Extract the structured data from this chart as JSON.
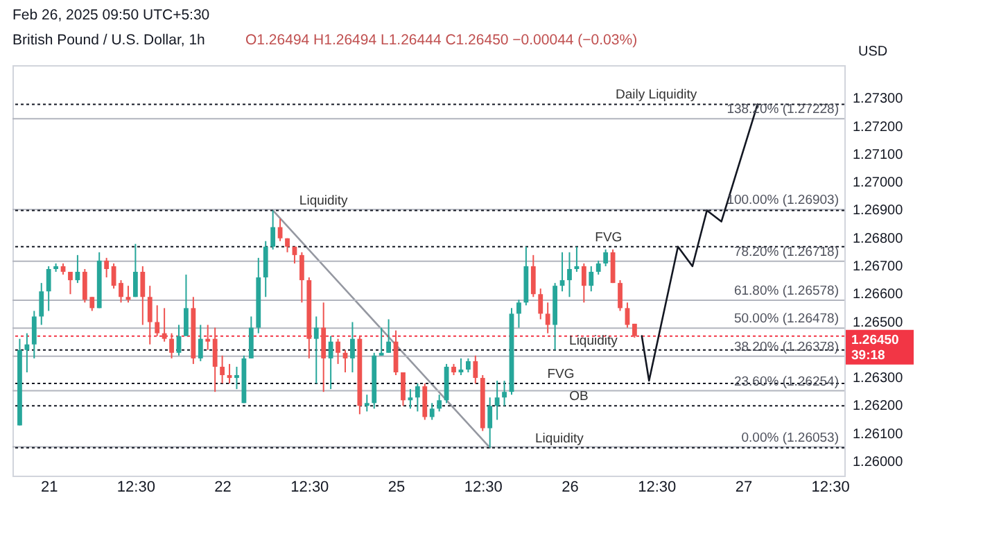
{
  "chart_data": {
    "type": "candlestick",
    "title": "British Pound / U.S. Dollar, 1h",
    "subtitle": "O1.26494 H1.26494 L1.26444 C1.26450 −0.00044 (−0.03%)",
    "ylabel": "USD",
    "annotations": [
      "Feb 26, 2025 09:50 UTC+5:30",
      {
        "text": "Daily Liquidity",
        "y": 1.2728
      },
      {
        "text": "Liquidity",
        "y": 1.269
      },
      {
        "text": "FVG",
        "y": 1.2677
      },
      {
        "text": "Liquidity",
        "y": 1.264
      },
      {
        "text": "FVG",
        "y": 1.2628
      },
      {
        "text": "OB",
        "y": 1.262
      },
      {
        "text": "Liquidity",
        "y": 1.2605
      }
    ],
    "categories": [
      null,
      null,
      null,
      null,
      "21",
      null,
      null,
      null,
      null,
      null,
      null,
      null,
      null,
      null,
      null,
      null,
      "12:30",
      null,
      null,
      null,
      null,
      null,
      null,
      null,
      null,
      null,
      null,
      null,
      "22",
      null,
      null,
      null,
      null,
      null,
      null,
      null,
      null,
      null,
      null,
      null,
      "12:30",
      null,
      null,
      null,
      null,
      null,
      null,
      null,
      null,
      null,
      null,
      null,
      "25",
      null,
      null,
      null,
      null,
      null,
      null,
      null,
      null,
      null,
      null,
      null,
      "12:30",
      null,
      null,
      null,
      null,
      null,
      null,
      null,
      null,
      null,
      null,
      null,
      "26",
      null,
      null,
      null,
      null,
      null,
      null,
      null,
      null,
      null,
      null,
      null,
      "12:30",
      null,
      null,
      null,
      null,
      null,
      null,
      null,
      null,
      null,
      null,
      null,
      "27",
      null,
      null,
      null,
      null,
      null,
      null,
      null,
      null,
      null,
      null,
      null,
      "12:30",
      null
    ],
    "colors": [
      "#26a69a",
      "#26a69a",
      "#26a69a",
      "#26a69a",
      "#26a69a",
      "#26a69a",
      "#ef5350",
      "#ef5350",
      "#26a69a",
      "#ef5350",
      "#ef5350",
      "#26a69a",
      "#ef5350",
      "#ef5350",
      "#ef5350",
      "#ef5350",
      "#26a69a",
      "#ef5350",
      "#ef5350",
      "#ef5350",
      "#ef5350",
      "#ef5350",
      "#26a69a",
      "#26a69a",
      "#ef5350",
      "#26a69a",
      "#ef5350",
      "#ef5350",
      "#ef5350",
      "#ef5350",
      "#26a69a",
      "#26a69a",
      "#26a69a",
      "#26a69a",
      "#26a69a",
      "#26a69a",
      "#ef5350",
      "#ef5350",
      "#ef5350",
      "#ef5350",
      "#ef5350",
      "#26a69a",
      "#ef5350",
      "#26a69a",
      "#ef5350",
      "#ef5350",
      "#26a69a",
      "#ef5350",
      "#26a69a",
      "#26a69a",
      "#26a69a",
      "#26a69a",
      "#ef5350",
      "#ef5350",
      "#26a69a",
      "#26a69a",
      "#ef5350",
      "#26a69a",
      "#26a69a",
      "#26a69a",
      "#ef5350",
      "#26a69a",
      "#26a69a",
      "#ef5350",
      "#ef5350",
      "#26a69a",
      "#26a69a",
      "#26a69a",
      "#26a69a",
      "#26a69a",
      "#26a69a",
      "#ef5350",
      "#ef5350",
      "#ef5350",
      "#26a69a",
      "#26a69a",
      "#26a69a",
      "#26a69a",
      "#ef5350",
      "#26a69a",
      "#26a69a",
      "#26a69a",
      "#ef5350",
      "#ef5350",
      "#ef5350",
      "#ef5350",
      null,
      null,
      null,
      null,
      null,
      null,
      null,
      null,
      null,
      null,
      null,
      null,
      null,
      null,
      null,
      null,
      null,
      null,
      null,
      null,
      null,
      null,
      null,
      null,
      null,
      null,
      null,
      null
    ],
    "ohlc": [
      [
        1.2613,
        1.2644,
        1.2613,
        1.264
      ],
      [
        1.264,
        1.2646,
        1.2632,
        1.2642
      ],
      [
        1.2642,
        1.2654,
        1.2637,
        1.2652
      ],
      [
        1.2652,
        1.2664,
        1.2649,
        1.2661
      ],
      [
        1.2661,
        1.267,
        1.2654,
        1.2669
      ],
      [
        1.2669,
        1.2671,
        1.2668,
        1.267
      ],
      [
        1.267,
        1.2671,
        1.2667,
        1.2668
      ],
      [
        1.2668,
        1.2668,
        1.266,
        1.2665
      ],
      [
        1.2665,
        1.2674,
        1.2664,
        1.2668
      ],
      [
        1.2668,
        1.2669,
        1.2657,
        1.2658
      ],
      [
        1.2659,
        1.2659,
        1.2654,
        1.2655
      ],
      [
        1.2655,
        1.2675,
        1.2655,
        1.2672
      ],
      [
        1.2672,
        1.2673,
        1.2666,
        1.2669
      ],
      [
        1.267,
        1.2671,
        1.2662,
        1.2663
      ],
      [
        1.2664,
        1.2665,
        1.2657,
        1.2659
      ],
      [
        1.2659,
        1.2663,
        1.2657,
        1.2658
      ],
      [
        1.2659,
        1.2678,
        1.2659,
        1.2668
      ],
      [
        1.2668,
        1.267,
        1.2649,
        1.2659
      ],
      [
        1.2659,
        1.2663,
        1.2642,
        1.265
      ],
      [
        1.265,
        1.2656,
        1.2645,
        1.2646
      ],
      [
        1.2646,
        1.2655,
        1.2643,
        1.2644
      ],
      [
        1.2644,
        1.2646,
        1.2637,
        1.2639
      ],
      [
        1.2639,
        1.2649,
        1.2638,
        1.2645
      ],
      [
        1.2645,
        1.2667,
        1.2645,
        1.2655
      ],
      [
        1.2655,
        1.2659,
        1.2635,
        1.2637
      ],
      [
        1.2637,
        1.2649,
        1.2636,
        1.2644
      ],
      [
        1.2644,
        1.2649,
        1.264,
        1.2643
      ],
      [
        1.2644,
        1.2648,
        1.2625,
        1.2634
      ],
      [
        1.2634,
        1.2638,
        1.2628,
        1.2631
      ],
      [
        1.2631,
        1.2635,
        1.2628,
        1.263
      ],
      [
        1.263,
        1.2634,
        1.2626,
        1.2631
      ],
      [
        1.2621,
        1.2638,
        1.2621,
        1.2637
      ],
      [
        1.2637,
        1.2652,
        1.2637,
        1.2648
      ],
      [
        1.2648,
        1.2673,
        1.2646,
        1.2666
      ],
      [
        1.2666,
        1.2679,
        1.2659,
        1.2677
      ],
      [
        1.2677,
        1.269,
        1.2676,
        1.2684
      ],
      [
        1.2684,
        1.2687,
        1.2679,
        1.268
      ],
      [
        1.268,
        1.268,
        1.2675,
        1.2677
      ],
      [
        1.2677,
        1.2677,
        1.2671,
        1.2674
      ],
      [
        1.2674,
        1.2675,
        1.2657,
        1.2665
      ],
      [
        1.2665,
        1.2666,
        1.2637,
        1.2644
      ],
      [
        1.2644,
        1.2652,
        1.2628,
        1.2648
      ],
      [
        1.2648,
        1.2657,
        1.2625,
        1.2637
      ],
      [
        1.2637,
        1.2645,
        1.2626,
        1.2643
      ],
      [
        1.2643,
        1.2644,
        1.2635,
        1.2639
      ],
      [
        1.2639,
        1.264,
        1.2632,
        1.2637
      ],
      [
        1.2637,
        1.265,
        1.2632,
        1.2644
      ],
      [
        1.2644,
        1.2645,
        1.2617,
        1.262
      ],
      [
        1.262,
        1.2624,
        1.2618,
        1.2621
      ],
      [
        1.2621,
        1.2639,
        1.2619,
        1.2638
      ],
      [
        1.2638,
        1.2648,
        1.2638,
        1.2639
      ],
      [
        1.2639,
        1.2651,
        1.2639,
        1.2643
      ],
      [
        1.2643,
        1.2647,
        1.2631,
        1.2632
      ],
      [
        1.2632,
        1.2632,
        1.262,
        1.2622
      ],
      [
        1.2622,
        1.2626,
        1.2619,
        1.2623
      ],
      [
        1.2623,
        1.2628,
        1.2618,
        1.2627
      ],
      [
        1.2627,
        1.2628,
        1.2615,
        1.2616
      ],
      [
        1.2616,
        1.2621,
        1.2615,
        1.2619
      ],
      [
        1.2619,
        1.2624,
        1.2618,
        1.2622
      ],
      [
        1.2622,
        1.2635,
        1.2621,
        1.2634
      ],
      [
        1.2634,
        1.2635,
        1.2631,
        1.2632
      ],
      [
        1.2632,
        1.2637,
        1.2631,
        1.2633
      ],
      [
        1.2633,
        1.2637,
        1.2632,
        1.2636
      ],
      [
        1.2636,
        1.2638,
        1.2628,
        1.263
      ],
      [
        1.263,
        1.2631,
        1.2611,
        1.2612
      ],
      [
        1.2612,
        1.2623,
        1.2605,
        1.262
      ],
      [
        1.262,
        1.2629,
        1.2615,
        1.2623
      ],
      [
        1.2623,
        1.2629,
        1.262,
        1.2625
      ],
      [
        1.2625,
        1.2655,
        1.2624,
        1.2653
      ],
      [
        1.2653,
        1.2658,
        1.2648,
        1.2657
      ],
      [
        1.2657,
        1.2677,
        1.2656,
        1.267
      ],
      [
        1.267,
        1.2674,
        1.2659,
        1.266
      ],
      [
        1.266,
        1.2662,
        1.2651,
        1.2653
      ],
      [
        1.2653,
        1.2657,
        1.2646,
        1.2649
      ],
      [
        1.2649,
        1.2664,
        1.264,
        1.2663
      ],
      [
        1.2663,
        1.2675,
        1.2661,
        1.2665
      ],
      [
        1.2665,
        1.2675,
        1.2659,
        1.2669
      ],
      [
        1.2669,
        1.2677,
        1.2668,
        1.267
      ],
      [
        1.267,
        1.2671,
        1.2657,
        1.2663
      ],
      [
        1.2663,
        1.267,
        1.2661,
        1.2668
      ],
      [
        1.2668,
        1.2672,
        1.2667,
        1.2671
      ],
      [
        1.2671,
        1.2676,
        1.267,
        1.2675
      ],
      [
        1.2675,
        1.2676,
        1.2664,
        1.2664
      ],
      [
        1.2664,
        1.2665,
        1.2654,
        1.2655
      ],
      [
        1.2655,
        1.2657,
        1.2648,
        1.2649
      ],
      [
        1.26494,
        1.26494,
        1.26444,
        1.2645
      ],
      null,
      null,
      null,
      null,
      null,
      null,
      null,
      null,
      null,
      null,
      null,
      null,
      null,
      null,
      null,
      null,
      null,
      null,
      null,
      null,
      null,
      null,
      null,
      null,
      null,
      null,
      null,
      null
    ],
    "series": [
      {
        "type": "line",
        "color": "#9598a1",
        "values": [
          null,
          null,
          null,
          null,
          null,
          null,
          null,
          null,
          null,
          null,
          null,
          null,
          null,
          null,
          null,
          null,
          null,
          null,
          null,
          null,
          null,
          null,
          null,
          null,
          null,
          null,
          null,
          null,
          null,
          null,
          null,
          null,
          null,
          null,
          null,
          1.269,
          null,
          null,
          null,
          null,
          null,
          null,
          null,
          null,
          null,
          null,
          null,
          null,
          null,
          null,
          null,
          null,
          null,
          null,
          null,
          null,
          null,
          null,
          null,
          null,
          null,
          null,
          null,
          null,
          null,
          1.2605,
          null,
          null,
          null,
          null,
          null,
          null,
          null,
          null,
          null,
          null,
          null,
          null,
          null,
          null,
          null,
          null,
          null,
          null,
          null,
          null,
          null,
          null,
          null,
          null,
          null,
          null,
          null,
          null,
          null,
          null,
          null,
          null,
          null,
          null,
          null,
          null,
          null,
          null,
          null,
          null,
          null,
          null,
          null,
          null,
          null,
          null,
          null,
          null
        ]
      },
      {
        "type": "line",
        "color": "#131722",
        "values": [
          null,
          null,
          null,
          null,
          null,
          null,
          null,
          null,
          null,
          null,
          null,
          null,
          null,
          null,
          null,
          null,
          null,
          null,
          null,
          null,
          null,
          null,
          null,
          null,
          null,
          null,
          null,
          null,
          null,
          null,
          null,
          null,
          null,
          null,
          null,
          null,
          null,
          null,
          null,
          null,
          null,
          null,
          null,
          null,
          null,
          null,
          null,
          null,
          null,
          null,
          null,
          null,
          null,
          null,
          null,
          null,
          null,
          null,
          null,
          null,
          null,
          null,
          null,
          null,
          null,
          null,
          null,
          null,
          null,
          null,
          null,
          null,
          null,
          null,
          null,
          null,
          null,
          null,
          null,
          null,
          null,
          null,
          null,
          null,
          null,
          null,
          1.2645,
          1.2629,
          null,
          null,
          null,
          1.2677,
          null,
          1.267,
          null,
          1.269,
          null,
          1.2686,
          null,
          null,
          null,
          null,
          1.2728,
          null,
          null,
          null,
          null,
          null,
          null,
          null,
          null,
          null,
          null,
          null
        ]
      }
    ],
    "ref_lines": [
      {
        "axis": "y",
        "value": 1.27228,
        "label": "138.20% (1.27228)",
        "color": "#b2b5be",
        "line_style": "solid"
      },
      {
        "axis": "y",
        "value": 1.26903,
        "label": "100.00% (1.26903)",
        "color": "#b2b5be",
        "line_style": "solid"
      },
      {
        "axis": "y",
        "value": 1.26718,
        "label": "78.20% (1.26718)",
        "color": "#b2b5be",
        "line_style": "solid"
      },
      {
        "axis": "y",
        "value": 1.26578,
        "label": "61.80% (1.26578)",
        "color": "#b2b5be",
        "line_style": "solid"
      },
      {
        "axis": "y",
        "value": 1.26478,
        "label": "50.00% (1.26478)",
        "color": "#b2b5be",
        "line_style": "solid"
      },
      {
        "axis": "y",
        "value": 1.26378,
        "label": "38.20% (1.26378)",
        "color": "#b2b5be",
        "line_style": "solid"
      },
      {
        "axis": "y",
        "value": 1.26254,
        "label": "23.60% (1.26254)",
        "color": "#b2b5be",
        "line_style": "solid"
      },
      {
        "axis": "y",
        "value": 1.26053,
        "label": "0.00% (1.26053)",
        "color": "#b2b5be",
        "line_style": "solid"
      },
      {
        "axis": "y",
        "value": 1.2728,
        "color": "#131722",
        "line_style": "dotted"
      },
      {
        "axis": "y",
        "value": 1.269,
        "color": "#131722",
        "line_style": "dotted"
      },
      {
        "axis": "y",
        "value": 1.2677,
        "color": "#131722",
        "line_style": "dotted"
      },
      {
        "axis": "y",
        "value": 1.264,
        "color": "#131722",
        "line_style": "dotted"
      },
      {
        "axis": "y",
        "value": 1.2628,
        "color": "#131722",
        "line_style": "dotted"
      },
      {
        "axis": "y",
        "value": 1.262,
        "color": "#131722",
        "line_style": "dotted"
      },
      {
        "axis": "y",
        "value": 1.2605,
        "color": "#131722",
        "line_style": "dotted"
      },
      {
        "axis": "y",
        "value": 1.2645,
        "label": "1.26450\n39:18",
        "color": "#f23645",
        "line_style": "dotted"
      }
    ],
    "ylim": [
      1.2595,
      1.2742
    ],
    "yticks": [
      {
        "value": 1.26,
        "label": "1.26000"
      },
      {
        "value": 1.261,
        "label": "1.26100"
      },
      {
        "value": 1.262,
        "label": "1.26200"
      },
      {
        "value": 1.263,
        "label": "1.26300"
      },
      {
        "value": 1.265,
        "label": "1.26500"
      },
      {
        "value": 1.266,
        "label": "1.26600"
      },
      {
        "value": 1.267,
        "label": "1.26700"
      },
      {
        "value": 1.268,
        "label": "1.26800"
      },
      {
        "value": 1.269,
        "label": "1.26900"
      },
      {
        "value": 1.27,
        "label": "1.27000"
      },
      {
        "value": 1.271,
        "label": "1.27100"
      },
      {
        "value": 1.272,
        "label": "1.27200"
      },
      {
        "value": 1.273,
        "label": "1.27300"
      }
    ],
    "grid": false
  }
}
